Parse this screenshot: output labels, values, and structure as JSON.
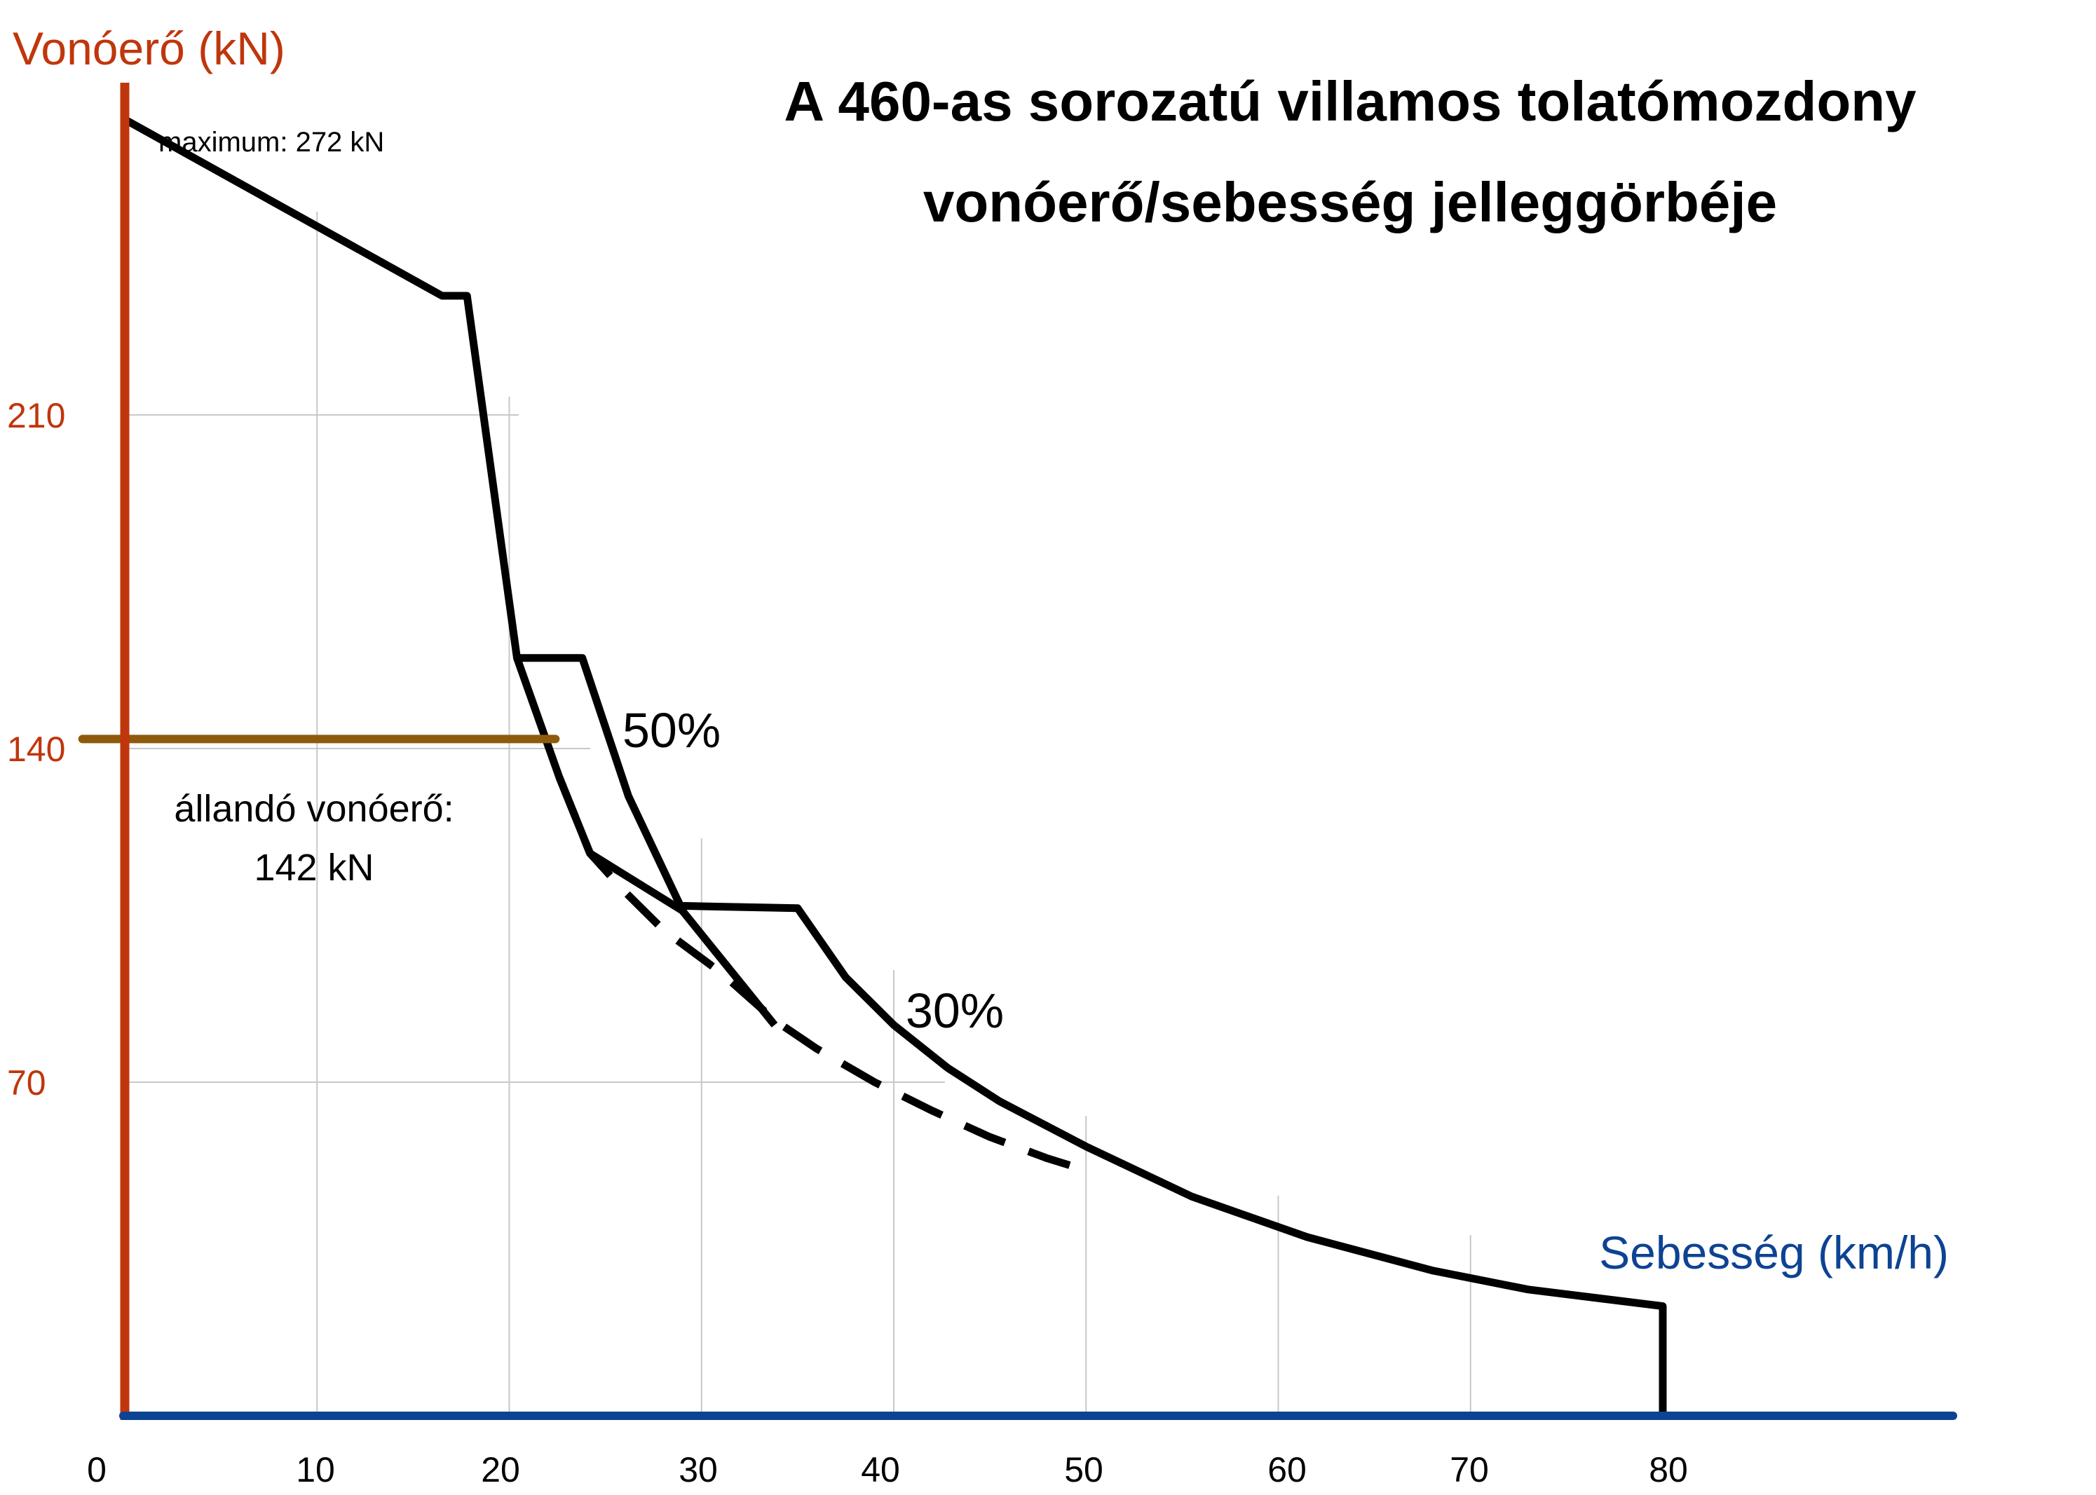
{
  "chart_data": {
    "type": "line",
    "title_lines": [
      "A 460-as sorozatú villamos tolatómozdony",
      "vonóerő/sebesség jelleggörbéje"
    ],
    "ylabel": "Vonóerő (kN)",
    "xlabel": "Sebesség (km/h)",
    "xlim": [
      0,
      95
    ],
    "ylim": [
      0,
      280
    ],
    "x_ticks": [
      0,
      10,
      20,
      30,
      40,
      50,
      60,
      70,
      80
    ],
    "x_tick_labels": [
      "0",
      "10",
      "20",
      "30",
      "40",
      "50",
      "60",
      "70",
      "80"
    ],
    "y_ticks": [
      70,
      140,
      210
    ],
    "y_tick_labels": [
      "70",
      "140",
      "210"
    ],
    "grid": true,
    "series": [
      {
        "style": "solid",
        "color": "#000000",
        "points": [
          [
            0,
            272
          ],
          [
            16.5,
            235
          ],
          [
            17.8,
            235
          ],
          [
            20.4,
            159
          ],
          [
            23.8,
            159
          ],
          [
            26.2,
            130
          ],
          [
            28.9,
            107
          ],
          [
            35,
            106.5
          ],
          [
            37.5,
            92
          ],
          [
            40,
            82
          ],
          [
            42.8,
            73
          ],
          [
            45.5,
            66
          ],
          [
            50,
            56.5
          ],
          [
            55.5,
            46
          ],
          [
            61.5,
            37.5
          ],
          [
            68,
            30.5
          ],
          [
            73,
            26.5
          ],
          [
            80,
            23
          ],
          [
            80,
            0
          ]
        ]
      },
      {
        "style": "solid",
        "color": "#000000",
        "points": [
          [
            20.4,
            159
          ],
          [
            22.6,
            134
          ],
          [
            24.2,
            118
          ],
          [
            29,
            106
          ],
          [
            33.8,
            82
          ]
        ]
      },
      {
        "style": "dashed",
        "color": "#000000",
        "points": [
          [
            22.6,
            134
          ],
          [
            24.2,
            118
          ],
          [
            26,
            110
          ],
          [
            28,
            102
          ],
          [
            31,
            93
          ],
          [
            33.8,
            83
          ],
          [
            36,
            77
          ],
          [
            39,
            70
          ],
          [
            42,
            64
          ],
          [
            45,
            58.5
          ],
          [
            48,
            54
          ],
          [
            50,
            51.5
          ]
        ]
      }
    ],
    "reference_line": {
      "y": 142,
      "x_range": [
        -2.2,
        22.4
      ],
      "color": "#8f5a0c"
    },
    "annotations": {
      "maximum": "maximum: 272 kN",
      "constant_line1": "állandó vonóerő:",
      "constant_line2": "142 kN",
      "pct50": "50%",
      "pct30": "30%"
    },
    "colors": {
      "y_axis": "#c0360c",
      "x_axis": "#0d4393",
      "grid": "#c8c8c8",
      "curve": "#000000"
    }
  }
}
